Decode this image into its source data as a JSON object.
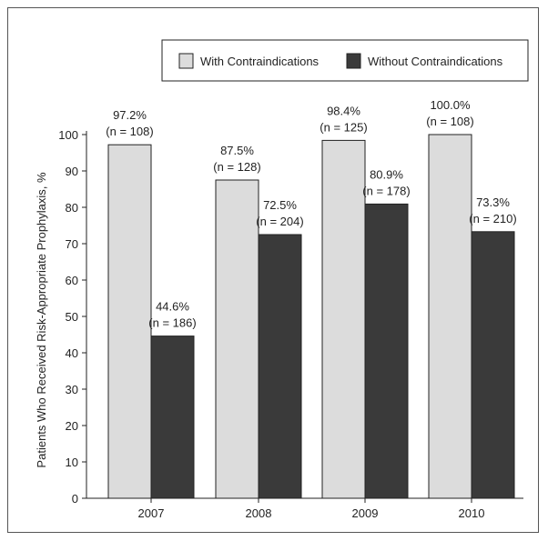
{
  "chart_data": {
    "type": "bar",
    "categories": [
      "2007",
      "2008",
      "2009",
      "2010"
    ],
    "series": [
      {
        "name": "With Contraindications",
        "color": "#dcdcdc",
        "values": [
          97.2,
          87.5,
          98.4,
          100.0
        ],
        "labels": [
          "97.2%",
          "87.5%",
          "98.4%",
          "100.0%"
        ],
        "counts": [
          "(n = 108)",
          "(n = 128)",
          "(n = 125)",
          "(n = 108)"
        ]
      },
      {
        "name": "Without Contraindications",
        "color": "#3a3a3a",
        "values": [
          44.6,
          72.5,
          80.9,
          73.3
        ],
        "labels": [
          "44.6%",
          "72.5%",
          "80.9%",
          "73.3%"
        ],
        "counts": [
          "(n = 186)",
          "(n = 204)",
          "(n = 178)",
          "(n = 210)"
        ]
      }
    ],
    "ylabel": "Patients Who Received Risk-Appropriate Prophylaxis, %",
    "xlabel": "",
    "ylim": [
      0,
      100
    ],
    "yticks": [
      0,
      10,
      20,
      30,
      40,
      50,
      60,
      70,
      80,
      90,
      100
    ],
    "grid": false,
    "legend": "top-right",
    "colors": {
      "bar_outline": "#222222",
      "axis": "#222222",
      "frame": "#555555"
    }
  }
}
